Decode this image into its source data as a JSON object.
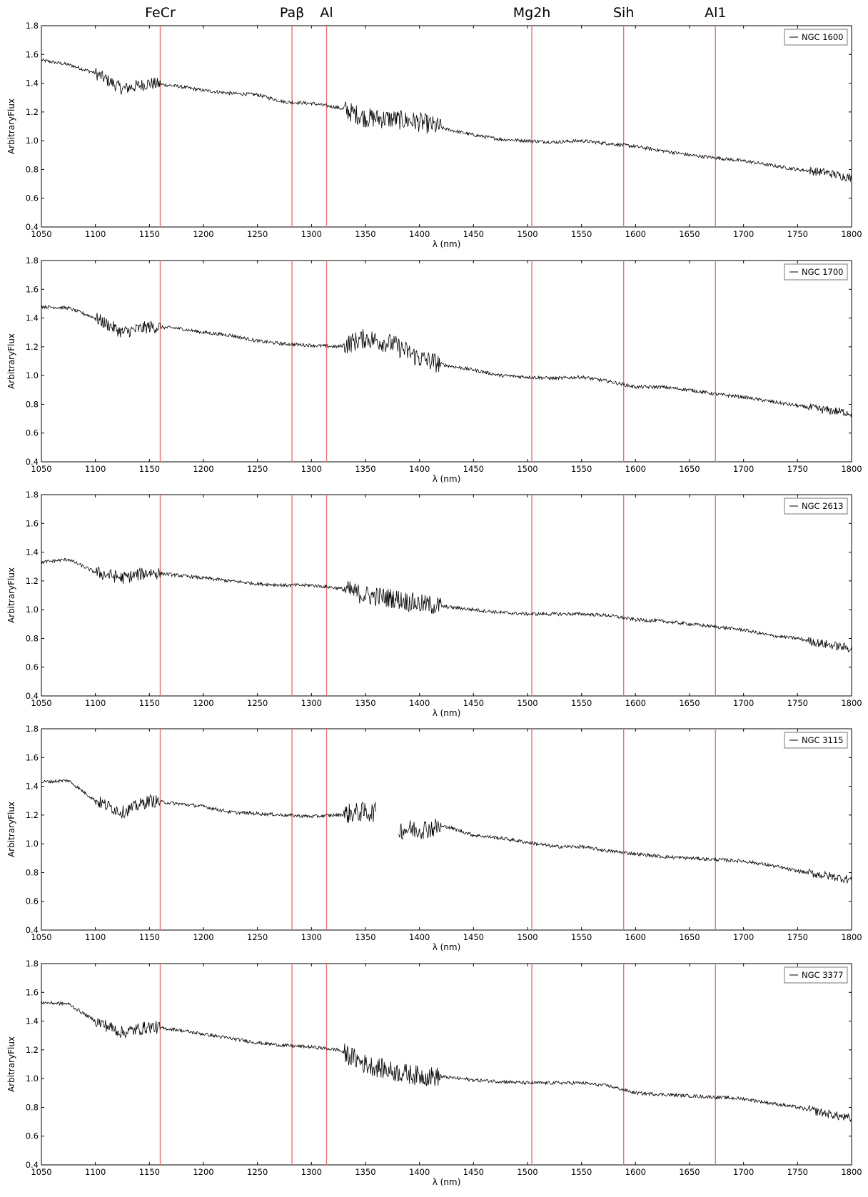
{
  "figure": {
    "line_labels": [
      "FeCr",
      "Paβ",
      "Al",
      "Mg2h",
      "Sih",
      "Al1"
    ],
    "line_positions": [
      1160,
      1282,
      1314,
      1504,
      1589,
      1674
    ],
    "line_color": "#e8736f",
    "trace_color": "#000000"
  },
  "chart_data": [
    {
      "type": "line",
      "legend": "NGC 1600",
      "legend_position": "top-right",
      "xlabel": "λ (nm)",
      "ylabel": "ArbitraryFlux",
      "xlim": [
        1050,
        1800
      ],
      "ylim": [
        0.4,
        1.8
      ],
      "xticks": [
        "1050",
        "1100",
        "1150",
        "1200",
        "1250",
        "1300",
        "1350",
        "1400",
        "1450",
        "1500",
        "1550",
        "1600",
        "1650",
        "1700",
        "1750",
        "1800"
      ],
      "yticks": [
        "0.4",
        "0.6",
        "0.8",
        "1.0",
        "1.2",
        "1.4",
        "1.6",
        "1.8"
      ],
      "x": [
        1050,
        1075,
        1100,
        1125,
        1150,
        1175,
        1200,
        1225,
        1250,
        1275,
        1300,
        1325,
        1350,
        1375,
        1400,
        1425,
        1450,
        1475,
        1500,
        1525,
        1550,
        1575,
        1600,
        1625,
        1650,
        1675,
        1700,
        1725,
        1750,
        1775,
        1800
      ],
      "y": [
        1.56,
        1.53,
        1.47,
        1.36,
        1.4,
        1.38,
        1.35,
        1.33,
        1.32,
        1.27,
        1.26,
        1.23,
        1.16,
        1.15,
        1.13,
        1.08,
        1.04,
        1.01,
        1.0,
        0.99,
        1.0,
        0.98,
        0.96,
        0.93,
        0.9,
        0.88,
        0.86,
        0.83,
        0.8,
        0.78,
        0.74
      ]
    },
    {
      "type": "line",
      "legend": "NGC 1700",
      "legend_position": "top-right",
      "xlabel": "λ (nm)",
      "ylabel": "ArbitraryFlux",
      "xlim": [
        1050,
        1800
      ],
      "ylim": [
        0.4,
        1.8
      ],
      "xticks": [
        "1050",
        "1100",
        "1150",
        "1200",
        "1250",
        "1300",
        "1350",
        "1400",
        "1450",
        "1500",
        "1550",
        "1600",
        "1650",
        "1700",
        "1750",
        "1800"
      ],
      "yticks": [
        "0.4",
        "0.6",
        "0.8",
        "1.0",
        "1.2",
        "1.4",
        "1.6",
        "1.8"
      ],
      "x": [
        1050,
        1075,
        1100,
        1125,
        1150,
        1175,
        1200,
        1225,
        1250,
        1275,
        1300,
        1325,
        1350,
        1375,
        1400,
        1425,
        1450,
        1475,
        1500,
        1525,
        1550,
        1575,
        1600,
        1625,
        1650,
        1675,
        1700,
        1725,
        1750,
        1775,
        1800
      ],
      "y": [
        1.48,
        1.47,
        1.4,
        1.3,
        1.34,
        1.33,
        1.3,
        1.28,
        1.24,
        1.22,
        1.21,
        1.2,
        1.26,
        1.22,
        1.12,
        1.07,
        1.04,
        1.0,
        0.99,
        0.98,
        0.99,
        0.96,
        0.92,
        0.92,
        0.9,
        0.87,
        0.85,
        0.82,
        0.79,
        0.76,
        0.74
      ]
    },
    {
      "type": "line",
      "legend": "NGC 2613",
      "legend_position": "top-right",
      "xlabel": "λ (nm)",
      "ylabel": "ArbitraryFlux",
      "xlim": [
        1050,
        1800
      ],
      "ylim": [
        0.4,
        1.8
      ],
      "xticks": [
        "1050",
        "1100",
        "1150",
        "1200",
        "1250",
        "1300",
        "1350",
        "1400",
        "1450",
        "1500",
        "1550",
        "1600",
        "1650",
        "1700",
        "1750",
        "1800"
      ],
      "yticks": [
        "0.4",
        "0.6",
        "0.8",
        "1.0",
        "1.2",
        "1.4",
        "1.6",
        "1.8"
      ],
      "x": [
        1050,
        1075,
        1100,
        1125,
        1150,
        1175,
        1200,
        1225,
        1250,
        1275,
        1300,
        1325,
        1350,
        1375,
        1400,
        1425,
        1450,
        1475,
        1500,
        1525,
        1550,
        1575,
        1600,
        1625,
        1650,
        1675,
        1700,
        1725,
        1750,
        1775,
        1800
      ],
      "y": [
        1.33,
        1.35,
        1.26,
        1.22,
        1.26,
        1.24,
        1.22,
        1.2,
        1.18,
        1.17,
        1.17,
        1.15,
        1.1,
        1.08,
        1.04,
        1.02,
        1.0,
        0.98,
        0.97,
        0.97,
        0.97,
        0.96,
        0.93,
        0.92,
        0.9,
        0.88,
        0.86,
        0.82,
        0.8,
        0.76,
        0.73
      ]
    },
    {
      "type": "line",
      "legend": "NGC 3115",
      "legend_position": "top-right",
      "xlabel": "λ (nm)",
      "ylabel": "ArbitraryFlux",
      "xlim": [
        1050,
        1800
      ],
      "ylim": [
        0.4,
        1.8
      ],
      "xticks": [
        "1050",
        "1100",
        "1150",
        "1200",
        "1250",
        "1300",
        "1350",
        "1400",
        "1450",
        "1500",
        "1550",
        "1600",
        "1650",
        "1700",
        "1750",
        "1800"
      ],
      "yticks": [
        "0.4",
        "0.6",
        "0.8",
        "1.0",
        "1.2",
        "1.4",
        "1.6",
        "1.8"
      ],
      "x": [
        1050,
        1075,
        1100,
        1125,
        1150,
        1175,
        1200,
        1225,
        1250,
        1275,
        1300,
        1325,
        1345,
        1360,
        1380,
        1400,
        1425,
        1450,
        1475,
        1500,
        1525,
        1550,
        1575,
        1600,
        1625,
        1650,
        1675,
        1700,
        1725,
        1750,
        1775,
        1800
      ],
      "y": [
        1.43,
        1.44,
        1.3,
        1.22,
        1.3,
        1.28,
        1.26,
        1.22,
        1.21,
        1.2,
        1.19,
        1.2,
        1.22,
        null,
        null,
        1.1,
        1.12,
        1.06,
        1.04,
        1.01,
        0.98,
        0.98,
        0.95,
        0.93,
        0.91,
        0.9,
        0.89,
        0.88,
        0.85,
        0.81,
        0.78,
        0.75
      ]
    },
    {
      "type": "line",
      "legend": "NGC 3377",
      "legend_position": "top-right",
      "xlabel": "λ (nm)",
      "ylabel": "ArbitraryFlux",
      "xlim": [
        1050,
        1800
      ],
      "ylim": [
        0.4,
        1.8
      ],
      "xticks": [
        "1050",
        "1100",
        "1150",
        "1200",
        "1250",
        "1300",
        "1350",
        "1400",
        "1450",
        "1500",
        "1550",
        "1600",
        "1650",
        "1700",
        "1750",
        "1800"
      ],
      "yticks": [
        "0.4",
        "0.6",
        "0.8",
        "1.0",
        "1.2",
        "1.4",
        "1.6",
        "1.8"
      ],
      "x": [
        1050,
        1075,
        1100,
        1125,
        1150,
        1175,
        1200,
        1225,
        1250,
        1275,
        1300,
        1325,
        1350,
        1375,
        1400,
        1425,
        1450,
        1475,
        1500,
        1525,
        1550,
        1575,
        1600,
        1625,
        1650,
        1675,
        1700,
        1725,
        1750,
        1775,
        1800
      ],
      "y": [
        1.53,
        1.52,
        1.4,
        1.32,
        1.36,
        1.34,
        1.31,
        1.28,
        1.25,
        1.23,
        1.22,
        1.2,
        1.1,
        1.05,
        1.02,
        1.01,
        0.99,
        0.98,
        0.97,
        0.97,
        0.97,
        0.95,
        0.9,
        0.89,
        0.88,
        0.87,
        0.86,
        0.83,
        0.8,
        0.76,
        0.72
      ]
    }
  ]
}
